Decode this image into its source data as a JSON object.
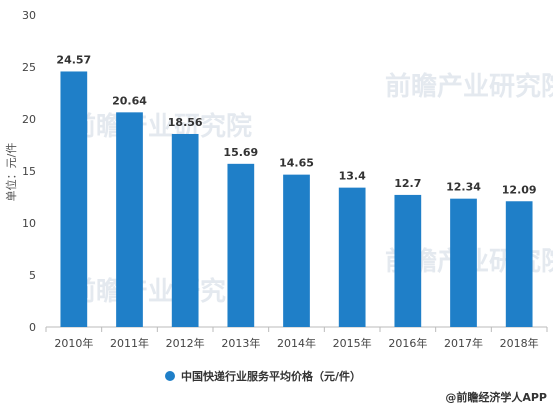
{
  "chart_data": {
    "type": "bar",
    "categories": [
      "2010年",
      "2011年",
      "2012年",
      "2013年",
      "2014年",
      "2015年",
      "2016年",
      "2017年",
      "2018年"
    ],
    "values": [
      24.57,
      20.64,
      18.56,
      15.69,
      14.65,
      13.4,
      12.7,
      12.34,
      12.09
    ],
    "value_labels": [
      "24.57",
      "20.64",
      "18.56",
      "15.69",
      "14.65",
      "13.4",
      "12.7",
      "12.34",
      "12.09"
    ],
    "title": "",
    "xlabel": "",
    "ylabel": "单位：元/件",
    "ylim": [
      0,
      30
    ],
    "yticks": [
      "0",
      "5",
      "10",
      "15",
      "20",
      "25",
      "30"
    ],
    "grid": false,
    "legend": {
      "position": "bottom-center",
      "entries": [
        "中国快递行业服务平均价格（元/件）"
      ]
    },
    "colors": {
      "bar": "#1f7fc8",
      "axis": "#bbbbbb",
      "legend_marker": "#1f7fc8"
    }
  },
  "watermark": "前瞻产业研究院",
  "source": "@前瞻经济学人APP"
}
